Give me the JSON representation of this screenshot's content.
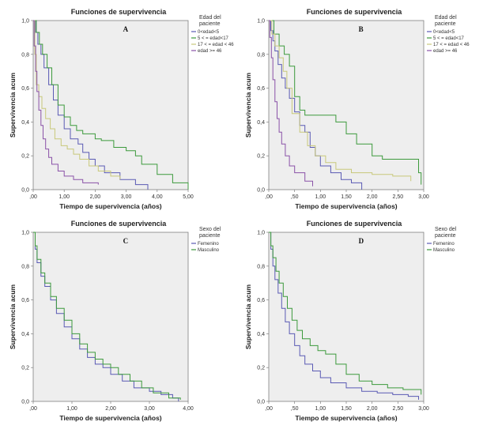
{
  "chart_data": [
    {
      "type": "line",
      "panel_letter": "A",
      "title": "Funciones de supervivencia",
      "xlabel": "Tiempo de supervivencia (años)",
      "ylabel": "Supervivencia acum",
      "xlim": [
        0,
        5.0
      ],
      "ylim": [
        0,
        1.0
      ],
      "x_ticks": [
        0,
        1,
        2,
        3,
        4,
        5
      ],
      "x_tick_labels": [
        ",00",
        "1,00",
        "2,00",
        "3,00",
        "4,00",
        "5,00"
      ],
      "y_ticks": [
        0,
        0.2,
        0.4,
        0.6,
        0.8,
        1.0
      ],
      "y_tick_labels": [
        "0,0",
        "0,2",
        "0,4",
        "0,6",
        "0,8",
        "1,0"
      ],
      "legend_title": "Edad del paciente",
      "legend_position": "top-right",
      "series": [
        {
          "name": "0<edad<5",
          "color": "#5a5ab4",
          "x": [
            0,
            0.08,
            0.15,
            0.25,
            0.35,
            0.5,
            0.65,
            0.8,
            1.0,
            1.2,
            1.45,
            1.6,
            1.8,
            2.0,
            2.3,
            2.8,
            3.3,
            3.7
          ],
          "y": [
            1.0,
            0.93,
            0.86,
            0.8,
            0.72,
            0.62,
            0.53,
            0.44,
            0.36,
            0.3,
            0.27,
            0.22,
            0.18,
            0.14,
            0.1,
            0.06,
            0.03,
            0.0
          ]
        },
        {
          "name": "5 < = edad<17",
          "color": "#3c9a3c",
          "x": [
            0,
            0.1,
            0.2,
            0.3,
            0.45,
            0.6,
            0.8,
            1.0,
            1.2,
            1.4,
            1.6,
            2.0,
            2.2,
            2.6,
            3.0,
            3.3,
            3.5,
            4.0,
            4.5,
            5.0
          ],
          "y": [
            1.0,
            0.93,
            0.86,
            0.8,
            0.72,
            0.62,
            0.5,
            0.43,
            0.38,
            0.35,
            0.33,
            0.3,
            0.29,
            0.25,
            0.23,
            0.2,
            0.15,
            0.09,
            0.04,
            0.0
          ]
        },
        {
          "name": "17 < = edad < 46",
          "color": "#c8c87a",
          "x": [
            0,
            0.05,
            0.1,
            0.18,
            0.28,
            0.4,
            0.55,
            0.7,
            0.9,
            1.1,
            1.3,
            1.5,
            1.8,
            2.1,
            2.5,
            2.8
          ],
          "y": [
            1.0,
            0.8,
            0.62,
            0.55,
            0.48,
            0.42,
            0.36,
            0.3,
            0.26,
            0.24,
            0.21,
            0.18,
            0.14,
            0.11,
            0.08,
            0.06
          ]
        },
        {
          "name": "edad >= 46",
          "color": "#8a52a8",
          "x": [
            0,
            0.03,
            0.08,
            0.12,
            0.18,
            0.25,
            0.32,
            0.4,
            0.5,
            0.6,
            0.8,
            1.0,
            1.3,
            1.6,
            2.1
          ],
          "y": [
            1.0,
            0.85,
            0.7,
            0.58,
            0.47,
            0.38,
            0.3,
            0.24,
            0.19,
            0.15,
            0.11,
            0.08,
            0.06,
            0.04,
            0.03
          ]
        }
      ]
    },
    {
      "type": "line",
      "panel_letter": "B",
      "title": "Funciones de supervivencia",
      "xlabel": "Tiempo de supervivencia (años)",
      "ylabel": "Supervivencia acum",
      "xlim": [
        0,
        3.0
      ],
      "ylim": [
        0,
        1.0
      ],
      "x_ticks": [
        0,
        0.5,
        1,
        1.5,
        2,
        2.5,
        3
      ],
      "x_tick_labels": [
        ",00",
        ",50",
        "1,00",
        "1,50",
        "2,00",
        "2,50",
        "3,00"
      ],
      "y_ticks": [
        0,
        0.2,
        0.4,
        0.6,
        0.8,
        1.0
      ],
      "y_tick_labels": [
        "0,0",
        "0,2",
        "0,4",
        "0,6",
        "0,8",
        "1,0"
      ],
      "legend_title": "Edad del paciente",
      "legend_position": "top-right",
      "series": [
        {
          "name": "0<edad<5",
          "color": "#5a5ab4",
          "x": [
            0,
            0.04,
            0.08,
            0.12,
            0.18,
            0.25,
            0.32,
            0.4,
            0.5,
            0.6,
            0.7,
            0.8,
            0.9,
            1.0,
            1.2,
            1.4,
            1.6,
            1.8
          ],
          "y": [
            1.0,
            0.94,
            0.88,
            0.82,
            0.74,
            0.66,
            0.6,
            0.54,
            0.46,
            0.38,
            0.34,
            0.25,
            0.2,
            0.14,
            0.1,
            0.06,
            0.04,
            0.0
          ]
        },
        {
          "name": "5 < = edad<17",
          "color": "#3c9a3c",
          "x": [
            0,
            0.1,
            0.2,
            0.3,
            0.4,
            0.5,
            0.6,
            0.7,
            0.9,
            1.1,
            1.3,
            1.5,
            1.7,
            2.0,
            2.2,
            2.5,
            2.9,
            2.95
          ],
          "y": [
            1.0,
            0.92,
            0.85,
            0.8,
            0.73,
            0.55,
            0.47,
            0.44,
            0.44,
            0.44,
            0.4,
            0.33,
            0.27,
            0.2,
            0.18,
            0.18,
            0.1,
            0.03
          ]
        },
        {
          "name": "17 < = edad < 46",
          "color": "#c8c87a",
          "x": [
            0,
            0.06,
            0.12,
            0.2,
            0.28,
            0.35,
            0.45,
            0.6,
            0.75,
            0.9,
            1.1,
            1.3,
            1.6,
            2.0,
            2.4,
            2.75
          ],
          "y": [
            1.0,
            0.92,
            0.85,
            0.78,
            0.7,
            0.6,
            0.45,
            0.34,
            0.26,
            0.2,
            0.16,
            0.12,
            0.1,
            0.09,
            0.08,
            0.05
          ]
        },
        {
          "name": "edad >= 46",
          "color": "#8a52a8",
          "x": [
            0,
            0.02,
            0.05,
            0.08,
            0.12,
            0.16,
            0.2,
            0.25,
            0.32,
            0.4,
            0.5,
            0.7,
            0.85
          ],
          "y": [
            1.0,
            0.9,
            0.78,
            0.65,
            0.52,
            0.42,
            0.34,
            0.27,
            0.2,
            0.14,
            0.1,
            0.05,
            0.02
          ]
        }
      ]
    },
    {
      "type": "line",
      "panel_letter": "C",
      "title": "Funciones de supervivencia",
      "xlabel": "Tiempo de supervivencia (años)",
      "ylabel": "Supervivencia acum",
      "xlim": [
        0,
        4.0
      ],
      "ylim": [
        0,
        1.0
      ],
      "x_ticks": [
        0,
        1,
        2,
        3,
        4
      ],
      "x_tick_labels": [
        ",00",
        "1,00",
        "2,00",
        "3,00",
        "4,00"
      ],
      "y_ticks": [
        0,
        0.2,
        0.4,
        0.6,
        0.8,
        1.0
      ],
      "y_tick_labels": [
        "0,0",
        "0,2",
        "0,4",
        "0,6",
        "0,8",
        "1,0"
      ],
      "legend_title": "Sexo del paciente",
      "legend_position": "top-right",
      "series": [
        {
          "name": "Femenino",
          "color": "#5a5ab4",
          "x": [
            0,
            0.05,
            0.1,
            0.2,
            0.3,
            0.45,
            0.6,
            0.8,
            1.0,
            1.2,
            1.4,
            1.6,
            1.8,
            2.0,
            2.3,
            2.6,
            3.0,
            3.3,
            3.6,
            3.75
          ],
          "y": [
            1.0,
            0.9,
            0.82,
            0.74,
            0.68,
            0.6,
            0.52,
            0.44,
            0.37,
            0.31,
            0.26,
            0.22,
            0.2,
            0.16,
            0.12,
            0.08,
            0.06,
            0.04,
            0.02,
            0.0
          ]
        },
        {
          "name": "Masculino",
          "color": "#3c9a3c",
          "x": [
            0,
            0.05,
            0.1,
            0.2,
            0.3,
            0.45,
            0.6,
            0.8,
            1.0,
            1.2,
            1.4,
            1.6,
            1.8,
            2.0,
            2.2,
            2.5,
            2.8,
            3.1,
            3.5,
            3.8
          ],
          "y": [
            1.0,
            0.92,
            0.84,
            0.76,
            0.7,
            0.62,
            0.55,
            0.48,
            0.4,
            0.34,
            0.29,
            0.25,
            0.22,
            0.2,
            0.16,
            0.12,
            0.08,
            0.05,
            0.02,
            0.01
          ]
        }
      ]
    },
    {
      "type": "line",
      "panel_letter": "D",
      "title": "Funciones de supervivencia",
      "xlabel": "Tiempo de supervivencia (años)",
      "ylabel": "Supervivencia acum",
      "xlim": [
        0,
        3.0
      ],
      "ylim": [
        0,
        1.0
      ],
      "x_ticks": [
        0,
        0.5,
        1,
        1.5,
        2,
        2.5,
        3
      ],
      "x_tick_labels": [
        ",00",
        ",50",
        "1,00",
        "1,50",
        "2,00",
        "2,50",
        "3,00"
      ],
      "y_ticks": [
        0,
        0.2,
        0.4,
        0.6,
        0.8,
        1.0
      ],
      "y_tick_labels": [
        "0,0",
        "0,2",
        "0,4",
        "0,6",
        "0,8",
        "1,0"
      ],
      "legend_title": "Sexo del paciente",
      "legend_position": "top-right",
      "series": [
        {
          "name": "Femenino",
          "color": "#5a5ab4",
          "x": [
            0,
            0.04,
            0.08,
            0.12,
            0.18,
            0.25,
            0.32,
            0.4,
            0.5,
            0.6,
            0.7,
            0.85,
            1.0,
            1.2,
            1.5,
            1.8,
            2.1,
            2.4,
            2.7,
            2.9
          ],
          "y": [
            1.0,
            0.9,
            0.8,
            0.72,
            0.64,
            0.55,
            0.47,
            0.4,
            0.33,
            0.27,
            0.22,
            0.18,
            0.14,
            0.11,
            0.08,
            0.06,
            0.05,
            0.04,
            0.03,
            0.01
          ]
        },
        {
          "name": "Masculino",
          "color": "#3c9a3c",
          "x": [
            0,
            0.04,
            0.08,
            0.14,
            0.2,
            0.28,
            0.36,
            0.45,
            0.55,
            0.65,
            0.8,
            0.95,
            1.1,
            1.3,
            1.5,
            1.75,
            2.0,
            2.3,
            2.6,
            2.95
          ],
          "y": [
            1.0,
            0.92,
            0.85,
            0.77,
            0.7,
            0.62,
            0.55,
            0.48,
            0.42,
            0.37,
            0.33,
            0.3,
            0.28,
            0.22,
            0.16,
            0.12,
            0.1,
            0.08,
            0.07,
            0.04
          ]
        }
      ]
    }
  ]
}
